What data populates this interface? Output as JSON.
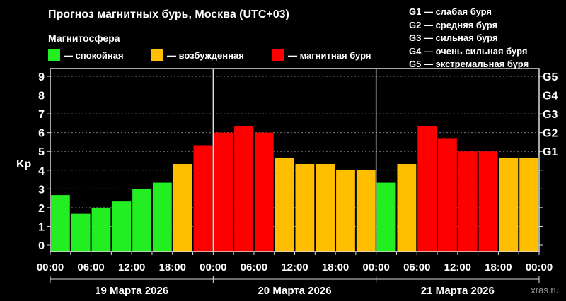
{
  "chart_data": {
    "type": "bar",
    "title": "Прогноз магнитных бурь, Москва (UTC+03)",
    "legend_title": "Магнитосфера",
    "legend": [
      {
        "label": "— спокойная",
        "color": "#22ee22"
      },
      {
        "label": "— возбужденная",
        "color": "#ffbf00"
      },
      {
        "label": "— магнитная буря",
        "color": "#ff0000"
      }
    ],
    "g_scale": [
      "G1 — слабая буря",
      "G2 — средняя буря",
      "G3 — сильная буря",
      "G4 — очень сильная буря",
      "G5 — экстремальная буря"
    ],
    "ylabel": "Kp",
    "ylim": [
      0,
      9
    ],
    "yticks": [
      "0",
      "1",
      "2",
      "3",
      "4",
      "5",
      "6",
      "7",
      "8",
      "9"
    ],
    "right_ticks": [
      {
        "label": "G1",
        "kp": 5
      },
      {
        "label": "G2",
        "kp": 6
      },
      {
        "label": "G3",
        "kp": 7
      },
      {
        "label": "G4",
        "kp": 8
      },
      {
        "label": "G5",
        "kp": 9
      }
    ],
    "xticks": [
      "00:00",
      "06:00",
      "12:00",
      "18:00",
      "00:00",
      "06:00",
      "12:00",
      "18:00",
      "00:00",
      "06:00",
      "12:00",
      "18:00",
      "00:00"
    ],
    "days": [
      "19 Марта 2026",
      "20 Марта 2026",
      "21 Марта 2026"
    ],
    "grid": true,
    "values": [
      2.67,
      1.67,
      2.0,
      2.33,
      3.0,
      3.33,
      4.33,
      5.33,
      6.0,
      6.33,
      6.0,
      4.67,
      4.33,
      4.33,
      4.0,
      4.0,
      3.33,
      4.33,
      6.33,
      5.67,
      5.0,
      5.0,
      4.67,
      4.67
    ],
    "levels": [
      "calm",
      "calm",
      "calm",
      "calm",
      "calm",
      "calm",
      "active",
      "storm",
      "storm",
      "storm",
      "storm",
      "active",
      "active",
      "active",
      "active",
      "active",
      "calm",
      "active",
      "storm",
      "storm",
      "storm",
      "storm",
      "active",
      "active"
    ],
    "level_colors": {
      "calm": "#22ee22",
      "active": "#ffbf00",
      "storm": "#ff0000"
    }
  },
  "watermark": "xras.ru"
}
